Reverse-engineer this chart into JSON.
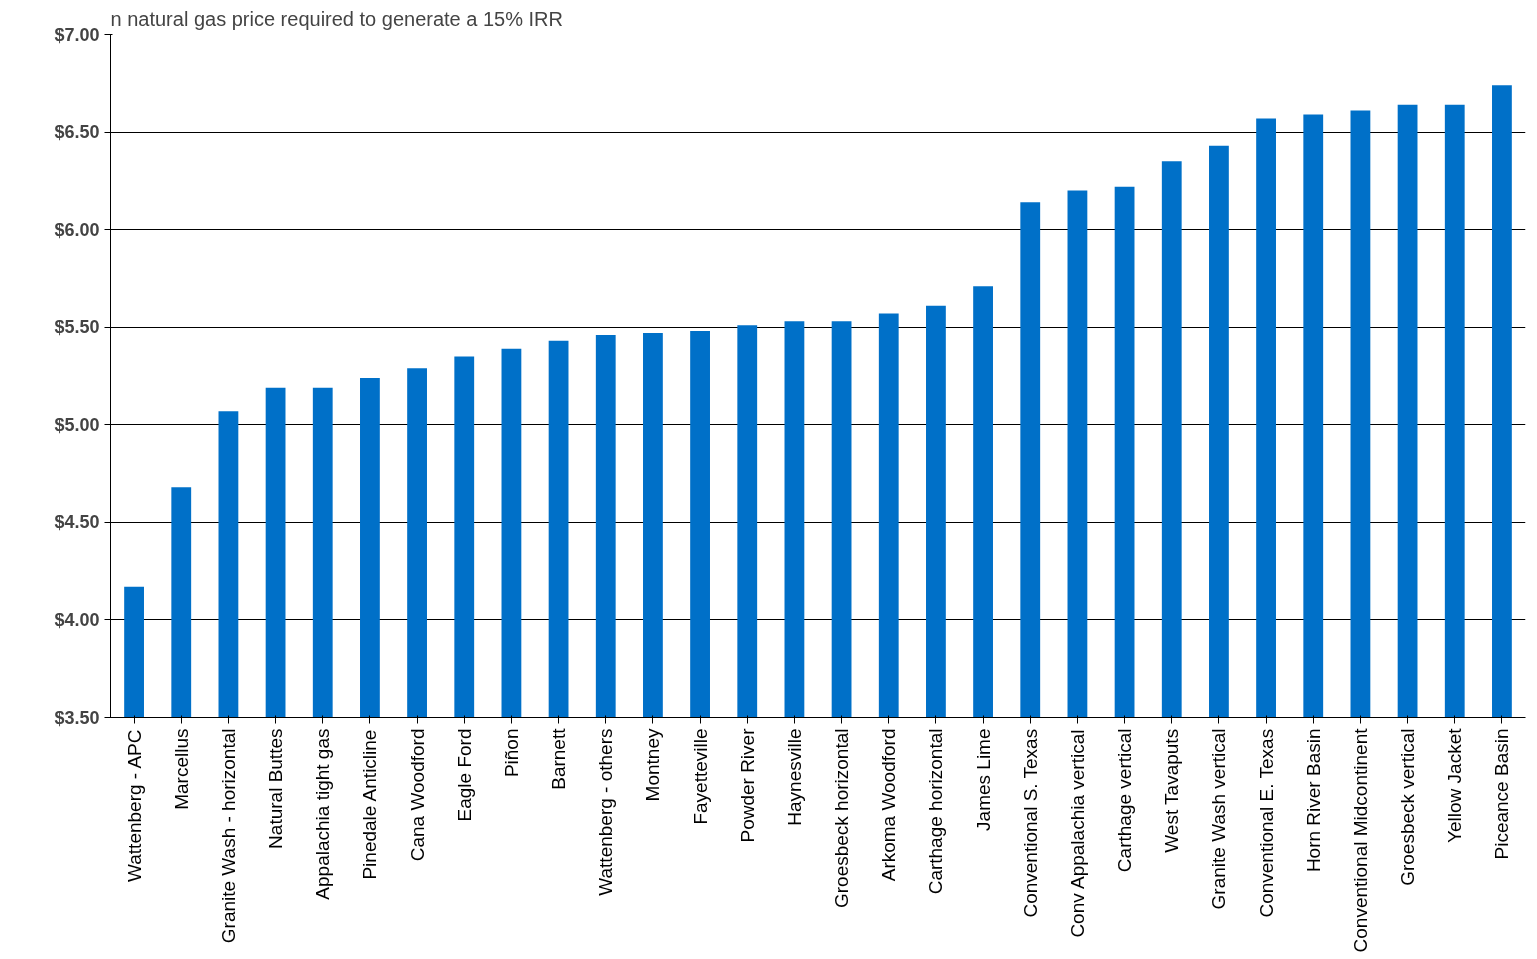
{
  "chart_data": {
    "type": "bar",
    "title": "n natural gas price required to generate a 15% IRR",
    "categories": [
      "Wattenberg - APC",
      "Marcellus",
      "Granite Wash - horizontal",
      "Natural Buttes",
      "Appalachia tight gas",
      "Pinedale Anticline",
      "Cana Woodford",
      "Eagle Ford",
      "Piñon",
      "Barnett",
      "Wattenberg - others",
      "Montney",
      "Fayetteville",
      "Powder River",
      "Haynesville",
      "Groesbeck horizontal",
      "Arkoma Woodford",
      "Carthage horizontal",
      "James Lime",
      "Conventional S. Texas",
      "Conv Appalachia vertical",
      "Carthage vertical",
      "West Tavaputs",
      "Granite Wash vertical",
      "Conventional E. Texas",
      "Horn River Basin",
      "Conventional Midcontinent",
      "Groesbeck vertical",
      "Yellow Jacket",
      "Piceance Basin"
    ],
    "values": [
      4.17,
      4.68,
      5.07,
      5.19,
      5.19,
      5.24,
      5.29,
      5.35,
      5.39,
      5.43,
      5.46,
      5.47,
      5.48,
      5.51,
      5.53,
      5.53,
      5.57,
      5.61,
      5.71,
      6.14,
      6.2,
      6.22,
      6.35,
      6.43,
      6.57,
      6.59,
      6.61,
      6.64,
      6.64,
      6.74
    ],
    "color": "#0070c8",
    "ylim": [
      3.5,
      7.0
    ],
    "yticks": [
      {
        "value": 3.5,
        "label": "$3.50"
      },
      {
        "value": 4.0,
        "label": "$4.00"
      },
      {
        "value": 4.5,
        "label": "$4.50"
      },
      {
        "value": 5.0,
        "label": "$5.00"
      },
      {
        "value": 5.5,
        "label": "$5.50"
      },
      {
        "value": 6.0,
        "label": "$6.00"
      },
      {
        "value": 6.5,
        "label": "$6.50"
      },
      {
        "value": 7.0,
        "label": "$7.00"
      }
    ],
    "grid": "y"
  }
}
